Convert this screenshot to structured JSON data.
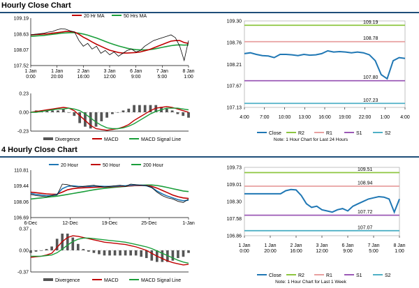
{
  "sections": [
    {
      "title": "Hourly Close Chart"
    },
    {
      "title": "4 Hourly Close Chart"
    }
  ],
  "colors": {
    "close": "#1f77b4",
    "ma_short": "#c00000",
    "ma_long": "#1a9e3a",
    "ma_200": "#1a9e3a",
    "r2": "#8dc63f",
    "r1": "#e8a0a0",
    "s1": "#9b59b6",
    "s2": "#4fb0c6",
    "macd": "#c00000",
    "signal": "#1a9e3a",
    "divergence": "#555555",
    "title_bar": "#1f4e79"
  },
  "chart_data": [
    {
      "type": "line",
      "legend": [
        "20 Hr MA",
        "50 Hrs MA"
      ],
      "ylim": [
        107.52,
        109.19
      ],
      "yticks": [
        "109.19",
        "108.63",
        "108.07",
        "107.52"
      ],
      "xticks": [
        "1 Jan\n0:00",
        "1 Jan\n20:00",
        "2 Jan\n16:00",
        "3 Jan\n12:00",
        "6 Jan\n9:00",
        "7 Jan\n5:00",
        "8 Jan\n1:00"
      ],
      "close": [
        108.6,
        108.62,
        108.64,
        108.66,
        108.7,
        108.72,
        108.78,
        108.82,
        108.8,
        108.74,
        108.7,
        108.4,
        108.2,
        108.3,
        108.1,
        108.2,
        107.95,
        108.05,
        107.9,
        108.0,
        107.85,
        107.95,
        108.05,
        108.1,
        108.0,
        108.05,
        108.2,
        108.3,
        108.4,
        108.45,
        108.5,
        108.55,
        108.6,
        108.5,
        108.2,
        107.7,
        108.4
      ],
      "ma20": [
        108.6,
        108.61,
        108.62,
        108.63,
        108.64,
        108.66,
        108.68,
        108.7,
        108.72,
        108.72,
        108.7,
        108.62,
        108.52,
        108.44,
        108.35,
        108.27,
        108.2,
        108.13,
        108.06,
        108.02,
        107.98,
        107.96,
        107.96,
        107.97,
        107.98,
        108.0,
        108.04,
        108.08,
        108.14,
        108.2,
        108.26,
        108.32,
        108.38,
        108.4,
        108.4,
        108.33,
        108.3
      ],
      "ma50": [
        108.55,
        108.56,
        108.57,
        108.58,
        108.6,
        108.62,
        108.64,
        108.66,
        108.67,
        108.68,
        108.68,
        108.66,
        108.63,
        108.59,
        108.54,
        108.49,
        108.43,
        108.37,
        108.31,
        108.26,
        108.21,
        108.17,
        108.13,
        108.1,
        108.08,
        108.07,
        108.07,
        108.08,
        108.1,
        108.13,
        108.16,
        108.19,
        108.22,
        108.24,
        108.25,
        108.24,
        108.25
      ]
    },
    {
      "type": "line",
      "ylim": [
        -0.23,
        0.23
      ],
      "yticks": [
        "0.23",
        "0.00",
        "-0.23"
      ],
      "legend": [
        "Divergence",
        "MACD",
        "MACD Signal Line"
      ],
      "macd": [
        0.0,
        0.01,
        0.02,
        0.03,
        0.04,
        0.05,
        0.06,
        0.05,
        0.02,
        -0.04,
        -0.1,
        -0.16,
        -0.2,
        -0.21,
        -0.22,
        -0.21,
        -0.2,
        -0.18,
        -0.15,
        -0.1,
        -0.06,
        -0.02,
        0.02,
        0.05,
        0.06,
        0.07,
        0.06,
        0.04,
        0.02,
        0.0
      ],
      "signal": [
        0.0,
        0.0,
        0.01,
        0.02,
        0.03,
        0.04,
        0.04,
        0.05,
        0.04,
        0.02,
        -0.02,
        -0.07,
        -0.12,
        -0.16,
        -0.19,
        -0.2,
        -0.2,
        -0.19,
        -0.17,
        -0.14,
        -0.1,
        -0.06,
        -0.02,
        0.01,
        0.03,
        0.05,
        0.05,
        0.05,
        0.04,
        0.03
      ]
    },
    {
      "type": "line",
      "legend": [
        "Close",
        "R2",
        "R1",
        "S1",
        "S2"
      ],
      "ylim": [
        107.13,
        109.3
      ],
      "yticks": [
        "109.30",
        "108.76",
        "108.21",
        "107.67",
        "107.13"
      ],
      "xticks": [
        "4:00",
        "7:00",
        "10:00",
        "13:00",
        "16:00",
        "19:00",
        "22:00",
        "1:00",
        "4:00"
      ],
      "levels": [
        {
          "name": "R2",
          "value": 109.19,
          "label": "109.19"
        },
        {
          "name": "R1",
          "value": 108.78,
          "label": "108.78"
        },
        {
          "name": "S1",
          "value": 107.8,
          "label": "107.80"
        },
        {
          "name": "S2",
          "value": 107.23,
          "label": "107.23"
        }
      ],
      "close": [
        108.48,
        108.5,
        108.46,
        108.43,
        108.42,
        108.38,
        108.46,
        108.46,
        108.45,
        108.43,
        108.46,
        108.44,
        108.45,
        108.48,
        108.55,
        108.52,
        108.53,
        108.52,
        108.5,
        108.52,
        108.5,
        108.45,
        108.3,
        107.95,
        107.85,
        108.3,
        108.38,
        108.36
      ],
      "note": "Note: 1 Hour Chart for Last 24 Hours"
    },
    {
      "type": "line",
      "legend": [
        "20 Hour",
        "50 Hour",
        "200 Hour"
      ],
      "ylim": [
        106.69,
        110.81
      ],
      "yticks": [
        "110.81",
        "109.44",
        "108.06",
        "106.69"
      ],
      "xticks": [
        "6-Dec",
        "12-Dec",
        "19-Dec",
        "25-Dec",
        "1-Jan"
      ],
      "close": [
        108.7,
        108.6,
        108.55,
        108.5,
        108.6,
        108.65,
        109.6,
        109.55,
        109.4,
        109.35,
        109.4,
        109.45,
        109.5,
        109.4,
        109.35,
        109.4,
        109.45,
        109.5,
        109.4,
        109.6,
        109.55,
        109.5,
        109.45,
        109.3,
        108.9,
        108.6,
        108.4,
        108.3,
        108.1,
        108.0,
        108.3
      ],
      "ma20": [
        108.8,
        108.7,
        108.65,
        108.6,
        108.6,
        108.7,
        109.2,
        109.4,
        109.45,
        109.4,
        109.38,
        109.4,
        109.42,
        109.42,
        109.4,
        109.4,
        109.42,
        109.45,
        109.45,
        109.5,
        109.52,
        109.5,
        109.45,
        109.3,
        109.0,
        108.75,
        108.55,
        108.4,
        108.25,
        108.15,
        108.2
      ],
      "ma50": [
        108.9,
        108.85,
        108.8,
        108.75,
        108.72,
        108.72,
        108.9,
        109.1,
        109.2,
        109.25,
        109.28,
        109.3,
        109.32,
        109.34,
        109.35,
        109.36,
        109.38,
        109.4,
        109.42,
        109.45,
        109.47,
        109.48,
        109.47,
        109.4,
        109.25,
        109.05,
        108.85,
        108.65,
        108.5,
        108.4,
        108.35
      ],
      "ma200": [
        108.3,
        108.35,
        108.4,
        108.45,
        108.5,
        108.55,
        108.62,
        108.7,
        108.78,
        108.86,
        108.94,
        109.02,
        109.1,
        109.17,
        109.23,
        109.28,
        109.32,
        109.36,
        109.4,
        109.44,
        109.47,
        109.5,
        109.52,
        109.52,
        109.48,
        109.4,
        109.3,
        109.2,
        109.1,
        109.0,
        108.95
      ]
    },
    {
      "type": "line",
      "ylim": [
        -0.37,
        0.37
      ],
      "yticks": [
        "0.37",
        "0.00",
        "-0.37"
      ],
      "legend": [
        "Divergence",
        "MACD",
        "MACD Signal Line"
      ],
      "macd": [
        -0.12,
        -0.11,
        -0.1,
        -0.08,
        -0.05,
        0.05,
        0.15,
        0.22,
        0.25,
        0.24,
        0.22,
        0.2,
        0.18,
        0.16,
        0.14,
        0.13,
        0.12,
        0.11,
        0.1,
        0.08,
        0.06,
        0.03,
        0.0,
        -0.05,
        -0.1,
        -0.14,
        -0.18,
        -0.21,
        -0.23,
        -0.25,
        -0.24
      ],
      "signal": [
        -0.1,
        -0.1,
        -0.1,
        -0.09,
        -0.08,
        -0.04,
        0.02,
        0.09,
        0.15,
        0.19,
        0.21,
        0.21,
        0.2,
        0.19,
        0.18,
        0.17,
        0.16,
        0.15,
        0.14,
        0.12,
        0.1,
        0.08,
        0.06,
        0.03,
        -0.01,
        -0.05,
        -0.09,
        -0.13,
        -0.17,
        -0.2,
        -0.22
      ]
    },
    {
      "type": "line",
      "legend": [
        "Close",
        "R2",
        "R1",
        "S1",
        "S2"
      ],
      "ylim": [
        106.86,
        109.73
      ],
      "yticks": [
        "109.73",
        "109.01",
        "108.30",
        "107.58",
        "106.86"
      ],
      "xticks": [
        "1 Jan\n0:00",
        "1 Jan\n20:00",
        "2 Jan\n16:00",
        "3 Jan\n12:00",
        "6 Jan\n9:00",
        "7 Jan\n5:00",
        "8 Jan\n1:00"
      ],
      "levels": [
        {
          "name": "R2",
          "value": 109.51,
          "label": "109.51"
        },
        {
          "name": "R1",
          "value": 108.94,
          "label": "108.94"
        },
        {
          "name": "S1",
          "value": 107.72,
          "label": "107.72"
        },
        {
          "name": "S2",
          "value": 107.07,
          "label": "107.07"
        }
      ],
      "close": [
        108.62,
        108.62,
        108.62,
        108.62,
        108.62,
        108.62,
        108.62,
        108.62,
        108.75,
        108.8,
        108.78,
        108.55,
        108.2,
        108.05,
        108.1,
        107.95,
        107.9,
        107.85,
        107.95,
        108.0,
        107.9,
        108.1,
        108.2,
        108.3,
        108.4,
        108.45,
        108.5,
        108.48,
        108.4,
        107.85,
        108.4
      ],
      "note": "Note: 1 Hour Chart for Last 1 Week"
    }
  ]
}
